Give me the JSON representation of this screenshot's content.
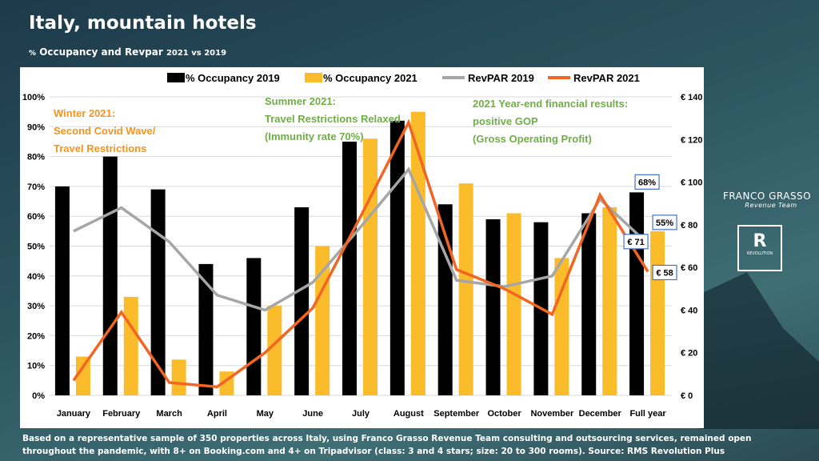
{
  "title": "Italy, mountain hotels",
  "subtitle": {
    "prefix": "%",
    "main": "Occupancy and Revpar",
    "suffix": "2021 vs 2019"
  },
  "footnote": "Based on a representative sample of 350 properties across Italy, using Franco Grasso Revenue Team consulting and outsourcing services, remained open throughout the pandemic, with 8+ on Booking.com and 4+ on Tripadvisor (class: 3 and 4 stars; size: 20 to 300 rooms). Source: RMS Revolution Plus",
  "logos": {
    "franco_grasso": "FRANCO GRASSO",
    "franco_grasso_sub": "Revenue Team",
    "revolution": "REVOLUTION"
  },
  "chart_data": {
    "type": "bar+line",
    "categories": [
      "January",
      "February",
      "March",
      "April",
      "May",
      "June",
      "July",
      "August",
      "September",
      "October",
      "November",
      "December",
      "Full year"
    ],
    "series": [
      {
        "name": "% Occupancy 2019",
        "type": "bar",
        "axis": "left",
        "color": "#000000",
        "values": [
          70,
          80,
          69,
          44,
          46,
          63,
          85,
          92,
          64,
          59,
          58,
          61,
          68
        ]
      },
      {
        "name": "% Occupancy 2021",
        "type": "bar",
        "axis": "left",
        "color": "#fbbc2c",
        "values": [
          13,
          33,
          12,
          8,
          30,
          50,
          86,
          95,
          71,
          61,
          46,
          63,
          55
        ]
      },
      {
        "name": "RevPAR 2019",
        "type": "line",
        "axis": "right",
        "color": "#a6a6a6",
        "values": [
          77,
          88,
          72,
          47,
          40,
          53,
          79,
          106,
          54,
          51,
          56,
          92,
          71
        ]
      },
      {
        "name": "RevPAR 2021",
        "type": "line",
        "axis": "right",
        "color": "#f26522",
        "values": [
          7,
          39,
          6,
          4,
          20,
          41,
          84,
          128,
          59,
          50,
          38,
          94,
          58
        ]
      }
    ],
    "left_axis": {
      "ticks": [
        "0%",
        "10%",
        "20%",
        "30%",
        "40%",
        "50%",
        "60%",
        "70%",
        "80%",
        "90%",
        "100%"
      ],
      "range": [
        0,
        100
      ]
    },
    "right_axis": {
      "ticks": [
        "€ 0",
        "€ 20",
        "€ 40",
        "€ 60",
        "€ 80",
        "€ 100",
        "€ 120",
        "€ 140"
      ],
      "range": [
        0,
        140
      ]
    },
    "grid": true,
    "legend": "top",
    "data_labels": [
      "68%",
      "55%",
      "€ 71",
      "€ 58"
    ],
    "annotations": [
      {
        "lines": [
          "Winter 2021:",
          "Second Covid Wave/",
          "Travel Restrictions"
        ],
        "color": "#f7941d"
      },
      {
        "lines": [
          "Summer 2021:",
          "Travel Restrictions Relaxed",
          "(Immunity rate 70%)"
        ],
        "color": "#70ad47"
      },
      {
        "lines": [
          "2021 Year-end financial results:",
          "positive GOP",
          "(Gross Operating Profit)"
        ],
        "color": "#70ad47"
      }
    ]
  }
}
